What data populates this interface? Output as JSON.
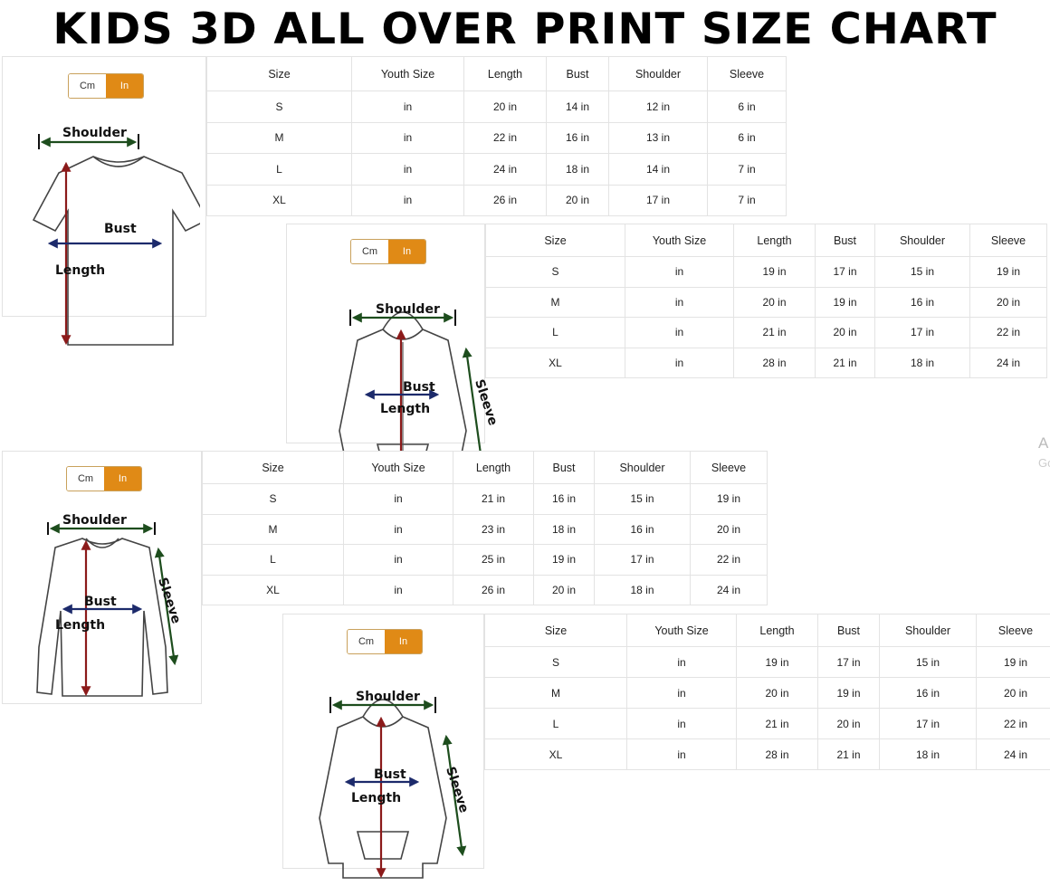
{
  "title": "KIDS 3D ALL OVER PRINT SIZE CHART",
  "unit_toggle": {
    "cm_label": "Cm",
    "in_label": "In",
    "selected": "In",
    "accent_color": "#e08a16"
  },
  "columns": [
    "Size",
    "Youth Size",
    "Length",
    "Bust",
    "Shoulder",
    "Sleeve"
  ],
  "charts": [
    {
      "garment": "t-shirt",
      "diagram_labels": {
        "shoulder": "Shoulder",
        "bust": "Bust",
        "length": "Length"
      },
      "rows": [
        [
          "S",
          "in",
          "20 in",
          "14 in",
          "12 in",
          "6 in"
        ],
        [
          "M",
          "in",
          "22 in",
          "16 in",
          "13 in",
          "6 in"
        ],
        [
          "L",
          "in",
          "24 in",
          "18 in",
          "14 in",
          "7 in"
        ],
        [
          "XL",
          "in",
          "26 in",
          "20 in",
          "17 in",
          "7 in"
        ]
      ]
    },
    {
      "garment": "zip-hoodie",
      "diagram_labels": {
        "shoulder": "Shoulder",
        "bust": "Bust",
        "length": "Length",
        "sleeve": "Sleeve"
      },
      "rows": [
        [
          "S",
          "in",
          "19 in",
          "17 in",
          "15 in",
          "19 in"
        ],
        [
          "M",
          "in",
          "20 in",
          "19 in",
          "16 in",
          "20 in"
        ],
        [
          "L",
          "in",
          "21 in",
          "20 in",
          "17 in",
          "22 in"
        ],
        [
          "XL",
          "in",
          "28 in",
          "21 in",
          "18 in",
          "24 in"
        ]
      ]
    },
    {
      "garment": "long-sleeve-shirt",
      "diagram_labels": {
        "shoulder": "Shoulder",
        "bust": "Bust",
        "length": "Length",
        "sleeve": "Sleeve"
      },
      "rows": [
        [
          "S",
          "in",
          "21 in",
          "16 in",
          "15 in",
          "19 in"
        ],
        [
          "M",
          "in",
          "23 in",
          "18 in",
          "16 in",
          "20 in"
        ],
        [
          "L",
          "in",
          "25 in",
          "19 in",
          "17 in",
          "22 in"
        ],
        [
          "XL",
          "in",
          "26 in",
          "20 in",
          "18 in",
          "24 in"
        ]
      ]
    },
    {
      "garment": "pullover-hoodie",
      "diagram_labels": {
        "shoulder": "Shoulder",
        "bust": "Bust",
        "length": "Length",
        "sleeve": "Sleeve"
      },
      "rows": [
        [
          "S",
          "in",
          "19 in",
          "17 in",
          "15 in",
          "19 in"
        ],
        [
          "M",
          "in",
          "20 in",
          "19 in",
          "16 in",
          "20 in"
        ],
        [
          "L",
          "in",
          "21 in",
          "20 in",
          "17 in",
          "22 in"
        ],
        [
          "XL",
          "in",
          "28 in",
          "21 in",
          "18 in",
          "24 in"
        ]
      ]
    }
  ],
  "watermark_fragments": {
    "line1": "A",
    "line2": "Go"
  }
}
